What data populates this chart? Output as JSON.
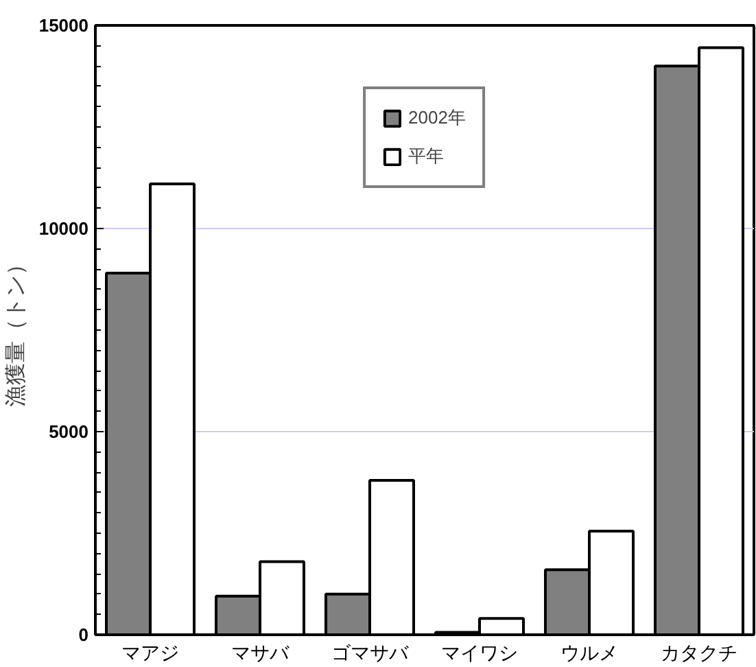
{
  "chart_data": {
    "type": "bar",
    "ylabel": "漁獲量（トン）",
    "categories": [
      "マアジ",
      "マサバ",
      "ゴマサバ",
      "マイワシ",
      "ウルメ",
      "カタクチ"
    ],
    "series": [
      {
        "name": "2002年",
        "color": "#808080",
        "values": [
          8900,
          950,
          1000,
          60,
          1600,
          14000
        ]
      },
      {
        "name": "平年",
        "color": "#ffffff",
        "values": [
          11100,
          1800,
          3800,
          400,
          2550,
          14450
        ]
      }
    ],
    "ylim": [
      0,
      15000
    ],
    "yticks": [
      0,
      5000,
      10000,
      15000
    ],
    "grid": "y",
    "legend": "top"
  }
}
